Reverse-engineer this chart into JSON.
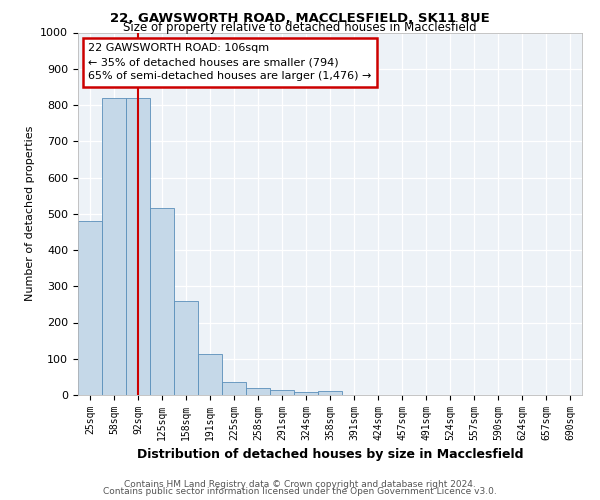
{
  "title1": "22, GAWSWORTH ROAD, MACCLESFIELD, SK11 8UE",
  "title2": "Size of property relative to detached houses in Macclesfield",
  "xlabel": "Distribution of detached houses by size in Macclesfield",
  "ylabel": "Number of detached properties",
  "categories": [
    "25sqm",
    "58sqm",
    "92sqm",
    "125sqm",
    "158sqm",
    "191sqm",
    "225sqm",
    "258sqm",
    "291sqm",
    "324sqm",
    "358sqm",
    "391sqm",
    "424sqm",
    "457sqm",
    "491sqm",
    "524sqm",
    "557sqm",
    "590sqm",
    "624sqm",
    "657sqm",
    "690sqm"
  ],
  "values": [
    480,
    820,
    820,
    515,
    260,
    113,
    35,
    20,
    15,
    8,
    10,
    0,
    0,
    0,
    0,
    0,
    0,
    0,
    0,
    0,
    0
  ],
  "bar_color": "#c5d8e8",
  "bar_edge_color": "#5a8fba",
  "ylim": [
    0,
    1000
  ],
  "yticks": [
    0,
    100,
    200,
    300,
    400,
    500,
    600,
    700,
    800,
    900,
    1000
  ],
  "red_line_x": 2.0,
  "annotation_text": "22 GAWSWORTH ROAD: 106sqm\n← 35% of detached houses are smaller (794)\n65% of semi-detached houses are larger (1,476) →",
  "annotation_box_color": "#ffffff",
  "annotation_box_edge": "#cc0000",
  "footer1": "Contains HM Land Registry data © Crown copyright and database right 2024.",
  "footer2": "Contains public sector information licensed under the Open Government Licence v3.0.",
  "background_color": "#edf2f7",
  "title_fontsize": 9.5,
  "subtitle_fontsize": 8.5
}
